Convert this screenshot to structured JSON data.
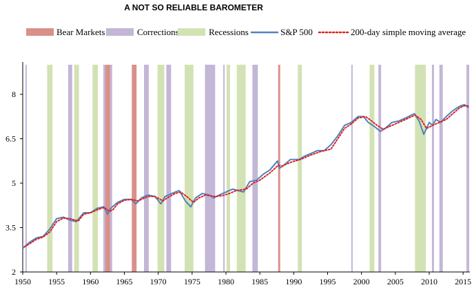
{
  "chart_data": {
    "type": "line",
    "title": "A NOT SO RELIABLE BAROMETER",
    "xlabel": "",
    "ylabel": "",
    "xlim": [
      1950,
      2016
    ],
    "ylim": [
      2,
      9
    ],
    "x_ticks": [
      1950,
      1955,
      1960,
      1965,
      1970,
      1975,
      1980,
      1985,
      1990,
      1995,
      2000,
      2005,
      2010,
      2015
    ],
    "y_ticks": [
      2,
      3.5,
      5,
      6.5,
      8
    ],
    "y_tick_labels": [
      "2",
      "3.5",
      "5",
      "6.5",
      "8"
    ],
    "legend": {
      "placement": "top",
      "entries": [
        {
          "label": "Bear Markets",
          "kind": "band",
          "color": "#d9908a"
        },
        {
          "label": "Corrections",
          "kind": "band",
          "color": "#c4b6d6"
        },
        {
          "label": "Recessions",
          "kind": "band",
          "color": "#d3e2b4"
        },
        {
          "label": "S&P 500",
          "kind": "line",
          "color": "#4f81bd"
        },
        {
          "label": "200-day simple moving average",
          "kind": "dotted",
          "color": "#e02020"
        }
      ]
    },
    "bands": {
      "bear_markets": [
        [
          1962.2,
          1962.9
        ],
        [
          1966.1,
          1966.8
        ],
        [
          1987.7,
          1988.0
        ]
      ],
      "corrections": [
        [
          1950.4,
          1950.6
        ],
        [
          1956.7,
          1957.3
        ],
        [
          1961.9,
          1962.2
        ],
        [
          1962.9,
          1963.2
        ],
        [
          1967.9,
          1968.6
        ],
        [
          1971.2,
          1971.9
        ],
        [
          1976.9,
          1978.4
        ],
        [
          1979.6,
          1979.8
        ],
        [
          1983.9,
          1984.7
        ],
        [
          1998.5,
          1998.7
        ],
        [
          2002.5,
          2002.9
        ],
        [
          2010.4,
          2010.7
        ],
        [
          2011.5,
          2012.0
        ],
        [
          2015.5,
          2015.9
        ]
      ],
      "recessions": [
        [
          1953.6,
          1954.4
        ],
        [
          1957.6,
          1958.3
        ],
        [
          1960.3,
          1961.1
        ],
        [
          1969.9,
          1970.9
        ],
        [
          1973.9,
          1975.2
        ],
        [
          1980.1,
          1980.6
        ],
        [
          1981.6,
          1982.9
        ],
        [
          1990.6,
          1991.2
        ],
        [
          2001.2,
          2001.9
        ],
        [
          2007.9,
          2009.5
        ]
      ]
    },
    "series": [
      {
        "name": "S&P 500",
        "x": [
          1950,
          1951,
          1952,
          1953,
          1954,
          1955,
          1956,
          1957,
          1957.9,
          1959,
          1960,
          1961,
          1962,
          1962.5,
          1963,
          1964,
          1965,
          1966,
          1966.7,
          1967.5,
          1968.5,
          1969.5,
          1970.4,
          1971,
          1972.5,
          1973.1,
          1974,
          1974.8,
          1975.5,
          1976.5,
          1977.5,
          1978.2,
          1979,
          1980,
          1981,
          1982.6,
          1983.5,
          1984.5,
          1985.5,
          1986.5,
          1987.6,
          1987.9,
          1988.5,
          1989.5,
          1990.8,
          1991.5,
          1992.5,
          1993.5,
          1994.5,
          1995.5,
          1996.5,
          1997.5,
          1998.5,
          1999.5,
          2000.3,
          2001,
          2001.7,
          2002.8,
          2003.5,
          2004.5,
          2005.5,
          2006.5,
          2007.8,
          2008.5,
          2009.2,
          2010,
          2010.5,
          2011,
          2011.7,
          2012.5,
          2013.5,
          2014.5,
          2015.2,
          2015.8
        ],
        "y": [
          2.8,
          3.0,
          3.15,
          3.2,
          3.45,
          3.8,
          3.85,
          3.75,
          3.7,
          4.0,
          4.0,
          4.15,
          4.2,
          3.95,
          4.15,
          4.35,
          4.45,
          4.45,
          4.3,
          4.5,
          4.6,
          4.55,
          4.3,
          4.55,
          4.7,
          4.75,
          4.4,
          4.2,
          4.5,
          4.65,
          4.6,
          4.5,
          4.6,
          4.7,
          4.8,
          4.7,
          5.05,
          5.1,
          5.3,
          5.45,
          5.75,
          5.5,
          5.6,
          5.8,
          5.8,
          5.9,
          6.0,
          6.1,
          6.1,
          6.3,
          6.6,
          6.95,
          7.05,
          7.25,
          7.25,
          7.05,
          6.95,
          6.75,
          6.85,
          7.05,
          7.1,
          7.2,
          7.35,
          7.1,
          6.65,
          7.05,
          6.95,
          7.15,
          7.05,
          7.25,
          7.45,
          7.6,
          7.65,
          7.55
        ]
      },
      {
        "name": "200-day simple moving average",
        "x": [
          1950.3,
          1951,
          1952,
          1953,
          1954,
          1955,
          1956,
          1957,
          1958.2,
          1959,
          1960,
          1961,
          1962,
          1962.8,
          1963.3,
          1964,
          1965,
          1966,
          1967,
          1967.8,
          1968.5,
          1969.5,
          1970.7,
          1971.3,
          1972.5,
          1973.3,
          1974.2,
          1975.2,
          1976,
          1977,
          1978.4,
          1979.5,
          1980.5,
          1981.5,
          1983,
          1984,
          1985,
          1986.5,
          1987.7,
          1988.3,
          1989.5,
          1991,
          1992.5,
          1994,
          1995.5,
          1996.5,
          1997.5,
          1998.5,
          1999.5,
          2000.6,
          2001.5,
          2002.3,
          2003.2,
          2004.5,
          2005.5,
          2006.5,
          2007.9,
          2008.8,
          2009.6,
          2010.5,
          2011.5,
          2012.5,
          2013.5,
          2014.5,
          2015.3,
          2015.9
        ],
        "y": [
          2.85,
          2.95,
          3.1,
          3.18,
          3.35,
          3.7,
          3.82,
          3.8,
          3.72,
          3.95,
          4.0,
          4.1,
          4.18,
          4.05,
          4.1,
          4.3,
          4.42,
          4.45,
          4.4,
          4.48,
          4.55,
          4.55,
          4.4,
          4.5,
          4.65,
          4.7,
          4.55,
          4.35,
          4.5,
          4.6,
          4.55,
          4.58,
          4.65,
          4.75,
          4.8,
          5.0,
          5.1,
          5.35,
          5.6,
          5.58,
          5.7,
          5.8,
          5.95,
          6.07,
          6.15,
          6.5,
          6.85,
          7.0,
          7.2,
          7.25,
          7.1,
          6.95,
          6.82,
          6.95,
          7.05,
          7.15,
          7.3,
          7.15,
          6.85,
          6.95,
          7.05,
          7.15,
          7.35,
          7.55,
          7.62,
          7.6
        ]
      }
    ]
  }
}
